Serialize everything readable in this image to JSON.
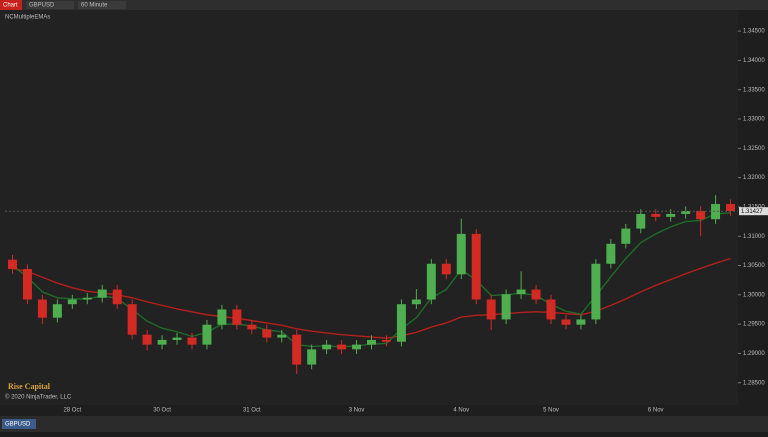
{
  "ui": {
    "tab": "Chart",
    "instrument": "GBPUSD",
    "interval": "60 Minute",
    "bottom_tab": "GBPUSD",
    "watermark": "Rise Capital",
    "copyright": "© 2020 NinjaTrader, LLC"
  },
  "chart_data": {
    "type": "candlestick",
    "indicator": "NCMultipleEMAs",
    "categories": [
      null,
      null,
      null,
      null,
      "28 Oct",
      null,
      null,
      null,
      null,
      null,
      "30 Oct",
      null,
      null,
      null,
      null,
      null,
      "31 Oct",
      null,
      null,
      null,
      null,
      null,
      null,
      "3 Nov",
      null,
      null,
      null,
      null,
      null,
      null,
      "4 Nov",
      null,
      null,
      null,
      null,
      null,
      "5 Nov",
      null,
      null,
      null,
      null,
      null,
      null,
      "6 Nov",
      null,
      null,
      null,
      null,
      null
    ],
    "open": [
      1.306,
      1.3044,
      1.2992,
      1.2961,
      1.2984,
      1.2992,
      1.2995,
      1.3009,
      1.2984,
      1.2932,
      1.2915,
      1.2923,
      1.2927,
      1.2915,
      1.2949,
      1.2975,
      1.2949,
      1.2941,
      1.2927,
      1.2932,
      1.2881,
      1.2907,
      1.2915,
      1.2907,
      1.2915,
      1.2923,
      1.292,
      1.2984,
      1.2992,
      1.3053,
      1.3035,
      1.3104,
      1.2992,
      1.2958,
      1.3001,
      1.3009,
      1.2992,
      1.2958,
      1.2949,
      1.2958,
      1.3053,
      1.3087,
      1.3113,
      1.3138,
      1.3133,
      1.3138,
      1.3143,
      1.3129,
      1.3155
    ],
    "high": [
      1.3068,
      1.3052,
      1.3,
      1.2992,
      1.3,
      1.3003,
      1.3017,
      1.3017,
      1.2992,
      1.294,
      1.2931,
      1.2935,
      1.2935,
      1.2957,
      1.2983,
      1.2983,
      1.2957,
      1.2949,
      1.294,
      1.294,
      1.2915,
      1.2923,
      1.2923,
      1.2923,
      1.2931,
      1.2931,
      1.2992,
      1.301,
      1.3061,
      1.3061,
      1.313,
      1.3112,
      1.3,
      1.3009,
      1.304,
      1.3017,
      1.3,
      1.2966,
      1.2966,
      1.3061,
      1.3095,
      1.3121,
      1.3146,
      1.3146,
      1.3146,
      1.3151,
      1.3151,
      1.317,
      1.3163
    ],
    "low": [
      1.3036,
      1.2984,
      1.295,
      1.2953,
      1.2976,
      1.2984,
      1.2987,
      1.2976,
      1.2924,
      1.2905,
      1.2907,
      1.2915,
      1.2907,
      1.2907,
      1.2941,
      1.2941,
      1.2933,
      1.2919,
      1.2919,
      1.2865,
      1.2873,
      1.2899,
      1.2899,
      1.2899,
      1.2907,
      1.2912,
      1.2912,
      1.2976,
      1.2984,
      1.3027,
      1.3027,
      1.2984,
      1.294,
      1.295,
      1.2993,
      1.2984,
      1.295,
      1.2941,
      1.2941,
      1.295,
      1.3045,
      1.3079,
      1.3105,
      1.3125,
      1.3125,
      1.313,
      1.31,
      1.3121,
      1.3135
    ],
    "close": [
      1.3044,
      1.2992,
      1.2961,
      1.2984,
      1.2992,
      1.2995,
      1.3009,
      1.2984,
      1.2932,
      1.2915,
      1.2923,
      1.2927,
      1.2915,
      1.2949,
      1.2975,
      1.2949,
      1.2941,
      1.2927,
      1.2932,
      1.2881,
      1.2907,
      1.2915,
      1.2907,
      1.2915,
      1.2923,
      1.292,
      1.2984,
      1.2992,
      1.3053,
      1.3035,
      1.3104,
      1.2992,
      1.2958,
      1.3001,
      1.3009,
      1.2992,
      1.2958,
      1.2949,
      1.2958,
      1.3053,
      1.3087,
      1.3113,
      1.3138,
      1.3133,
      1.3138,
      1.3143,
      1.3129,
      1.3155,
      1.3143
    ],
    "up_color": "#4fae4f",
    "down_color": "#d42a24",
    "series": [
      {
        "color": "#b3201e",
        "values": [
          1.3045,
          1.304,
          1.303,
          1.302,
          1.3012,
          1.3006,
          1.3003,
          1.3,
          1.2995,
          1.2988,
          1.2982,
          1.2976,
          1.2971,
          1.2966,
          1.2963,
          1.296,
          1.2956,
          1.2952,
          1.2948,
          1.2942,
          1.2938,
          1.2935,
          1.2932,
          1.293,
          1.2928,
          1.2926,
          1.293,
          1.2936,
          1.2945,
          1.2952,
          1.2962,
          1.2965,
          1.2966,
          1.2968,
          1.297,
          1.2971,
          1.297,
          1.2968,
          1.2966,
          1.2972,
          1.2982,
          1.2993,
          1.3005,
          1.3016,
          1.3026,
          1.3036,
          1.3045,
          1.3054,
          1.3062
        ]
      },
      {
        "color": "#1f6b2a",
        "values": [
          1.305,
          1.303,
          1.3005,
          1.2995,
          1.2993,
          1.2993,
          1.2998,
          1.2994,
          1.2975,
          1.2955,
          1.2943,
          1.2937,
          1.2929,
          1.2936,
          1.295,
          1.295,
          1.2947,
          1.294,
          1.2937,
          1.2915,
          1.2912,
          1.2913,
          1.2911,
          1.2913,
          1.2916,
          1.2917,
          1.2942,
          1.2961,
          1.2995,
          1.3009,
          1.3043,
          1.3025,
          1.2999,
          1.3,
          1.3003,
          1.2999,
          1.2984,
          1.2972,
          1.2967,
          1.2998,
          1.3031,
          1.3062,
          1.3089,
          1.3104,
          1.3116,
          1.3125,
          1.3127,
          1.3138,
          1.314
        ]
      }
    ],
    "last_price": 1.31427,
    "ylim": [
      1.2812,
      1.3486
    ],
    "yticks": [
      {
        "value": 1.285,
        "label": "1.28500"
      },
      {
        "value": 1.29,
        "label": "1.29000"
      },
      {
        "value": 1.295,
        "label": "1.29500"
      },
      {
        "value": 1.3,
        "label": "1.30000"
      },
      {
        "value": 1.305,
        "label": "1.30500"
      },
      {
        "value": 1.31,
        "label": "1.31000"
      },
      {
        "value": 1.315,
        "label": "1.31500"
      },
      {
        "value": 1.32,
        "label": "1.32000"
      },
      {
        "value": 1.325,
        "label": "1.32500"
      },
      {
        "value": 1.33,
        "label": "1.33000"
      },
      {
        "value": 1.335,
        "label": "1.33500"
      },
      {
        "value": 1.34,
        "label": "1.34000"
      },
      {
        "value": 1.345,
        "label": "1.34500"
      }
    ]
  }
}
